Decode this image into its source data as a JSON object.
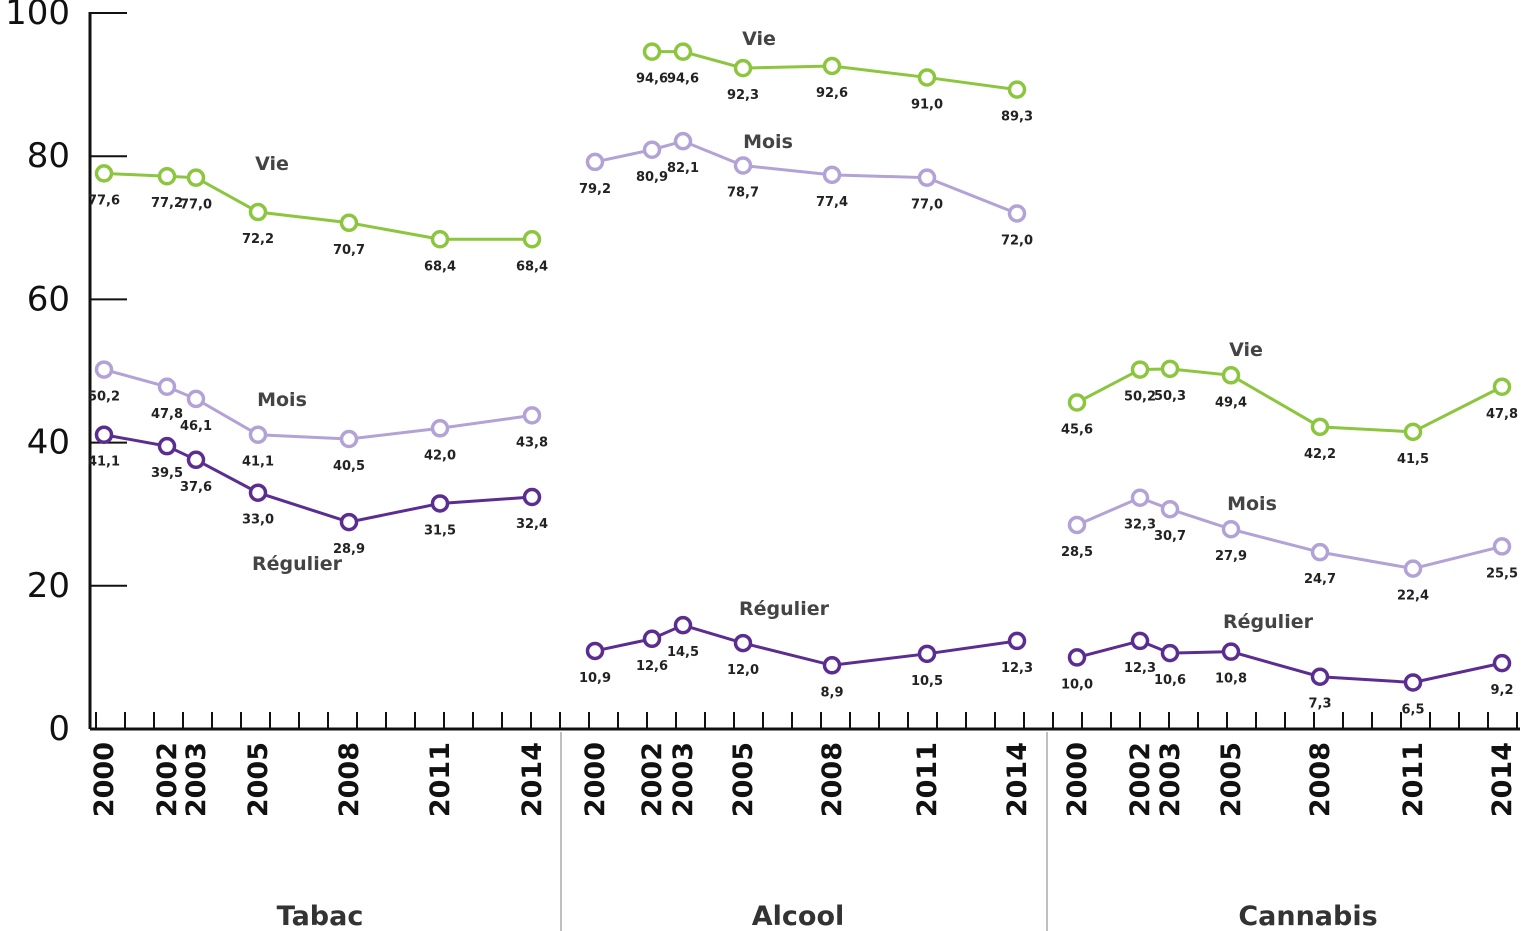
{
  "chart_data": {
    "type": "line",
    "x": [
      "2000",
      "2002",
      "2003",
      "2005",
      "2008",
      "2011",
      "2014"
    ],
    "ylim": [
      0,
      100
    ],
    "y_ticks": [
      "0",
      "20",
      "40",
      "60",
      "80",
      "100"
    ],
    "grid": false,
    "legend": "none",
    "panels": [
      {
        "label": "Tabac",
        "series": [
          {
            "name": "Vie",
            "color": "#8cc63f",
            "values": [
              77.6,
              77.2,
              77.0,
              72.2,
              70.7,
              68.4,
              68.4
            ],
            "labels": [
              "77,6",
              "77,2",
              "77,0",
              "72,2",
              "70,7",
              "68,4",
              "68,4"
            ]
          },
          {
            "name": "Mois",
            "color": "#b3a2d6",
            "values": [
              50.2,
              47.8,
              46.1,
              41.1,
              40.5,
              42.0,
              43.8
            ],
            "labels": [
              "50,2",
              "47,8",
              "46,1",
              "41,1",
              "40,5",
              "42,0",
              "43,8"
            ]
          },
          {
            "name": "Régulier",
            "color": "#5b2d90",
            "values": [
              41.1,
              39.5,
              37.6,
              33.0,
              28.9,
              31.5,
              32.4
            ],
            "labels": [
              "41,1",
              "39,5",
              "37,6",
              "33,0",
              "28,9",
              "31,5",
              "32,4"
            ]
          }
        ]
      },
      {
        "label": "Alcool",
        "series": [
          {
            "name": "Vie",
            "color": "#8cc63f",
            "values": [
              null,
              94.6,
              94.6,
              92.3,
              92.6,
              91.0,
              89.3
            ],
            "labels": [
              "",
              "94,6",
              "94,6",
              "92,3",
              "92,6",
              "91,0",
              "89,3"
            ]
          },
          {
            "name": "Mois",
            "color": "#b3a2d6",
            "values": [
              79.2,
              80.9,
              82.1,
              78.7,
              77.4,
              77.0,
              72.0
            ],
            "labels": [
              "79,2",
              "80,9",
              "82,1",
              "78,7",
              "77,4",
              "77,0",
              "72,0"
            ]
          },
          {
            "name": "Régulier",
            "color": "#5b2d90",
            "values": [
              10.9,
              12.6,
              14.5,
              12.0,
              8.9,
              10.5,
              12.3
            ],
            "labels": [
              "10,9",
              "12,6",
              "14,5",
              "12,0",
              "8,9",
              "10,5",
              "12,3"
            ]
          }
        ]
      },
      {
        "label": "Cannabis",
        "series": [
          {
            "name": "Vie",
            "color": "#8cc63f",
            "values": [
              45.6,
              50.2,
              50.3,
              49.4,
              42.2,
              41.5,
              47.8
            ],
            "labels": [
              "45,6",
              "50,2",
              "50,3",
              "49,4",
              "42,2",
              "41,5",
              "47,8"
            ]
          },
          {
            "name": "Mois",
            "color": "#b3a2d6",
            "values": [
              28.5,
              32.3,
              30.7,
              27.9,
              24.7,
              22.4,
              25.5
            ],
            "labels": [
              "28,5",
              "32,3",
              "30,7",
              "27,9",
              "24,7",
              "22,4",
              "25,5"
            ]
          },
          {
            "name": "Régulier",
            "color": "#5b2d90",
            "values": [
              10.0,
              12.3,
              10.6,
              10.8,
              7.3,
              6.5,
              9.2
            ],
            "labels": [
              "10,0",
              "12,3",
              "10,6",
              "10,8",
              "7,3",
              "6,5",
              "9,2"
            ]
          }
        ]
      }
    ]
  }
}
